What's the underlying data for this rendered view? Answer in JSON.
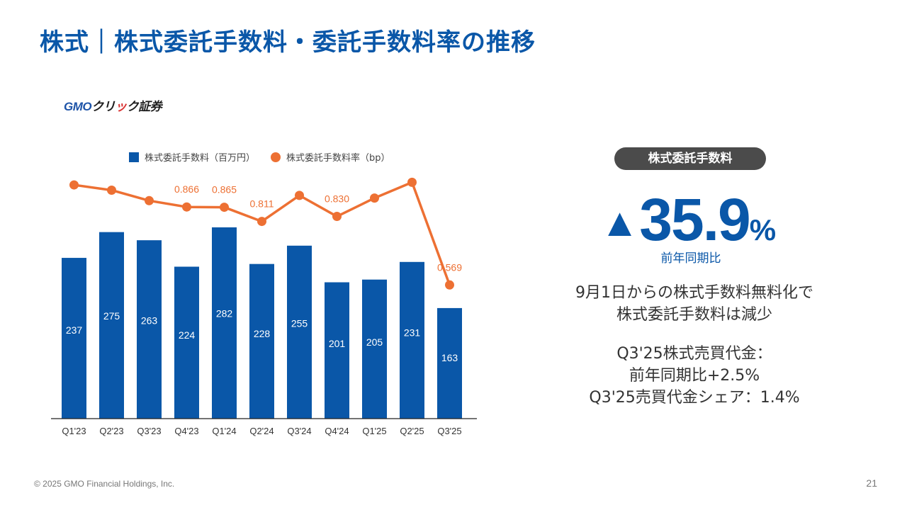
{
  "title": "株式｜株式委託手数料・委託手数料率の推移",
  "logo": {
    "gmo": "GMO",
    "click_a": "クリ",
    "click_b": "ッ",
    "click_c": "ク",
    "sec": "証券"
  },
  "legend": {
    "bar": "株式委託手数料（百万円）",
    "line": "株式委託手数料率（bp）"
  },
  "chart_data": {
    "type": "bar",
    "categories": [
      "Q1'23",
      "Q2'23",
      "Q3'23",
      "Q4'23",
      "Q1'24",
      "Q2'24",
      "Q3'24",
      "Q4'24",
      "Q1'25",
      "Q2'25",
      "Q3'25"
    ],
    "series": [
      {
        "name": "株式委託手数料（百万円）",
        "type": "bar",
        "values": [
          237,
          275,
          263,
          224,
          282,
          228,
          255,
          201,
          205,
          231,
          163
        ],
        "color": "#0a57a8"
      },
      {
        "name": "株式委託手数料率（bp）",
        "type": "line",
        "values": [
          0.95,
          0.93,
          0.89,
          0.866,
          0.865,
          0.811,
          0.91,
          0.83,
          0.9,
          0.96,
          0.569
        ],
        "labels": [
          null,
          null,
          null,
          "0.866",
          "0.865",
          "0.811",
          null,
          "0.830",
          null,
          null,
          "0.569"
        ],
        "color": "#ed7033"
      }
    ],
    "ylim_bar": [
      0,
      330
    ],
    "ylim_line": [
      0.3,
      1.05
    ]
  },
  "panel": {
    "badge": "株式委託手数料",
    "triangle": "▲",
    "change": "35.9",
    "percent": "%",
    "yoy_label": "前年同期比",
    "note1_line1": "9月1日からの株式手数料無料化で",
    "note1_line2": "株式委託手数料は減少",
    "note2_line1": "Q3'25株式売買代金：",
    "note2_line2": "前年同期比+2.5%",
    "note2_line3": "Q3'25売買代金シェア：1.4%"
  },
  "footer": "© 2025 GMO Financial Holdings, Inc.",
  "page_number": "21"
}
